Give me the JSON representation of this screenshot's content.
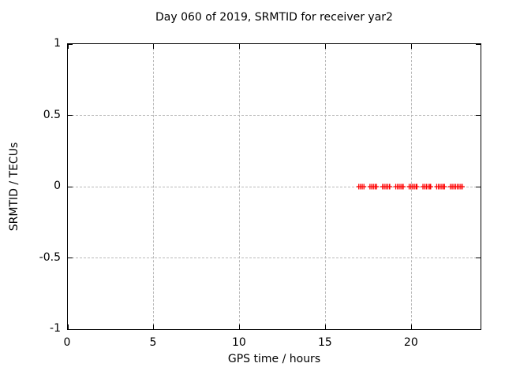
{
  "chart_data": {
    "type": "scatter",
    "title": "Day 060 of 2019, SRMTID for receiver yar2",
    "xlabel": "GPS time / hours",
    "ylabel": "SRMTID / TECUs",
    "xlim": [
      0,
      24
    ],
    "ylim": [
      -1,
      1
    ],
    "xticks": [
      {
        "value": 0,
        "label": "0"
      },
      {
        "value": 5,
        "label": "5"
      },
      {
        "value": 10,
        "label": "10"
      },
      {
        "value": 15,
        "label": "15"
      },
      {
        "value": 20,
        "label": "20"
      }
    ],
    "yticks": [
      {
        "value": 1,
        "label": "1"
      },
      {
        "value": 0.5,
        "label": "0.5"
      },
      {
        "value": 0,
        "label": "0"
      },
      {
        "value": -0.5,
        "label": "-0.5"
      },
      {
        "value": -1,
        "label": "-1"
      }
    ],
    "grid": true,
    "grid_style": "dashed",
    "legend": false,
    "series": [
      {
        "name": "SRMTID",
        "marker": "plus",
        "color": "#ff0000",
        "y_value": 0,
        "x_segments_hours": [
          [
            16.92,
            17.22
          ],
          [
            17.57,
            17.95
          ],
          [
            18.3,
            18.72
          ],
          [
            19.07,
            19.5
          ],
          [
            19.85,
            20.3
          ],
          [
            20.65,
            21.1
          ],
          [
            21.45,
            21.9
          ],
          [
            22.25,
            22.94
          ]
        ],
        "sample_interval_hours": 0.1
      }
    ],
    "colors": {
      "background": "#ffffff",
      "axis": "#000000",
      "grid": "#b9b9b9",
      "text": "#000000"
    }
  }
}
